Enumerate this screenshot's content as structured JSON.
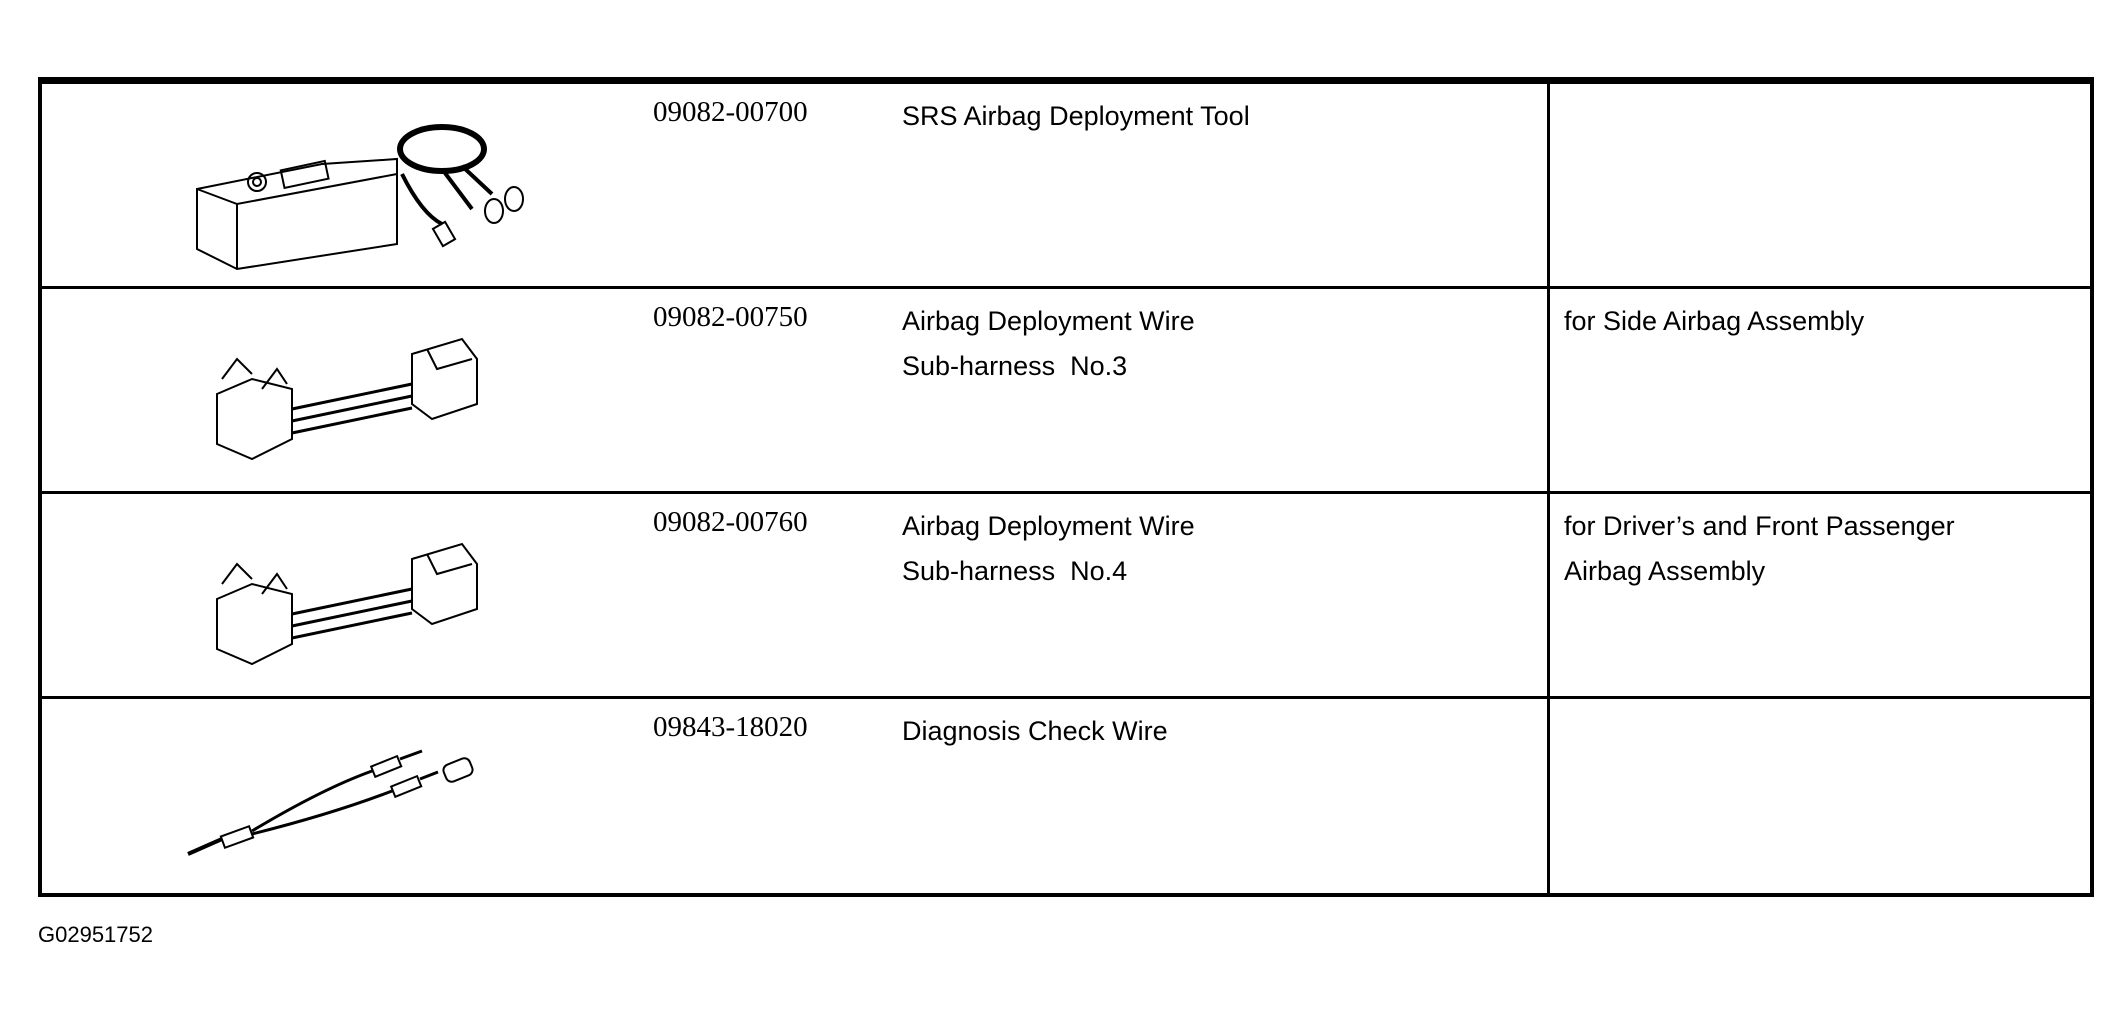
{
  "tools": [
    {
      "part_number": "09082-00700",
      "description": [
        "SRS Airbag Deployment Tool"
      ],
      "note": [],
      "illustration": "deployment-tool-box"
    },
    {
      "part_number": "09082-00750",
      "description": [
        "Airbag Deployment Wire",
        "Sub-harness  No.3"
      ],
      "note": [
        "for Side Airbag Assembly"
      ],
      "illustration": "sub-harness-connector"
    },
    {
      "part_number": "09082-00760",
      "description": [
        "Airbag Deployment Wire",
        "Sub-harness  No.4"
      ],
      "note": [
        "for Driver’s and Front Passenger",
        "Airbag Assembly"
      ],
      "illustration": "sub-harness-connector"
    },
    {
      "part_number": "09843-18020",
      "description": [
        "Diagnosis Check Wire"
      ],
      "note": [],
      "illustration": "check-wire"
    }
  ],
  "figure_code": "G02951752"
}
